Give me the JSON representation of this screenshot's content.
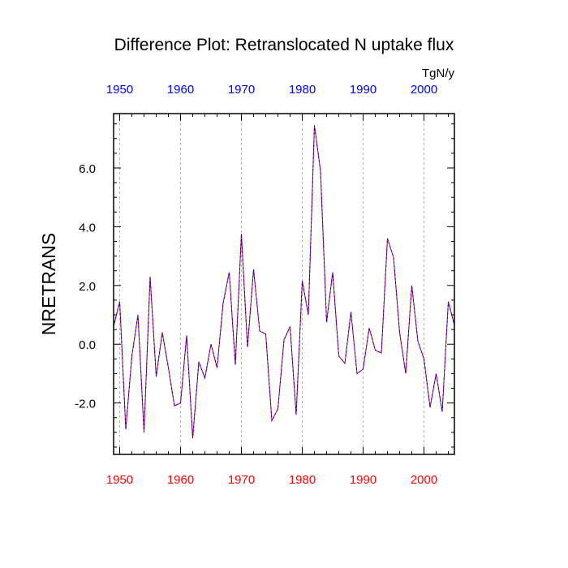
{
  "chart_data": {
    "type": "line",
    "title": "Difference Plot: Retranslocated N uptake flux",
    "units": "TgN/y",
    "ylabel": "NRETRANS",
    "xlabel": "",
    "xlim": [
      1949,
      2005
    ],
    "ylim": [
      -3.75,
      7.85
    ],
    "grid": "vertical dashed at decades",
    "x_ticks": [
      1950,
      1960,
      1970,
      1980,
      1990,
      2000
    ],
    "x_tick_labels": [
      "1950",
      "1960",
      "1970",
      "1980",
      "1990",
      "2000"
    ],
    "y_ticks": [
      -2.0,
      0.0,
      2.0,
      4.0,
      6.0
    ],
    "y_tick_labels": [
      "-2.0",
      "0.0",
      "2.0",
      "4.0",
      "6.0"
    ],
    "colors": {
      "bottom_axis_labels": "#ff0000",
      "top_axis_labels": "#0000ff",
      "series_line_a": "#ff0000",
      "series_line_b": "#0000ff",
      "grid": "#b4b4b4",
      "frame": "#000000"
    },
    "x": [
      1949,
      1950,
      1951,
      1952,
      1953,
      1954,
      1955,
      1956,
      1957,
      1958,
      1959,
      1960,
      1961,
      1962,
      1963,
      1964,
      1965,
      1966,
      1967,
      1968,
      1969,
      1970,
      1971,
      1972,
      1973,
      1974,
      1975,
      1976,
      1977,
      1978,
      1979,
      1980,
      1981,
      1982,
      1983,
      1984,
      1985,
      1986,
      1987,
      1988,
      1989,
      1990,
      1991,
      1992,
      1993,
      1994,
      1995,
      1996,
      1997,
      1998,
      1999,
      2000,
      2001,
      2002,
      2003,
      2004,
      2005
    ],
    "series": [
      {
        "name": "NRETRANS difference",
        "values": [
          0.6,
          1.45,
          -2.9,
          -0.4,
          1.0,
          -3.0,
          2.3,
          -1.1,
          0.4,
          -0.8,
          -2.1,
          -2.0,
          0.3,
          -3.2,
          -0.6,
          -1.15,
          0.0,
          -0.8,
          1.4,
          2.45,
          -0.7,
          3.75,
          -0.1,
          2.55,
          0.45,
          0.35,
          -2.6,
          -2.2,
          0.15,
          0.6,
          -2.4,
          2.15,
          1.0,
          7.45,
          5.9,
          0.75,
          2.45,
          -0.4,
          -0.65,
          1.1,
          -1.0,
          -0.85,
          0.55,
          -0.2,
          -0.3,
          3.6,
          2.95,
          0.4,
          -1.0,
          2.0,
          0.1,
          -0.5,
          -2.15,
          -1.0,
          -2.3,
          1.45,
          0.65
        ]
      }
    ]
  }
}
